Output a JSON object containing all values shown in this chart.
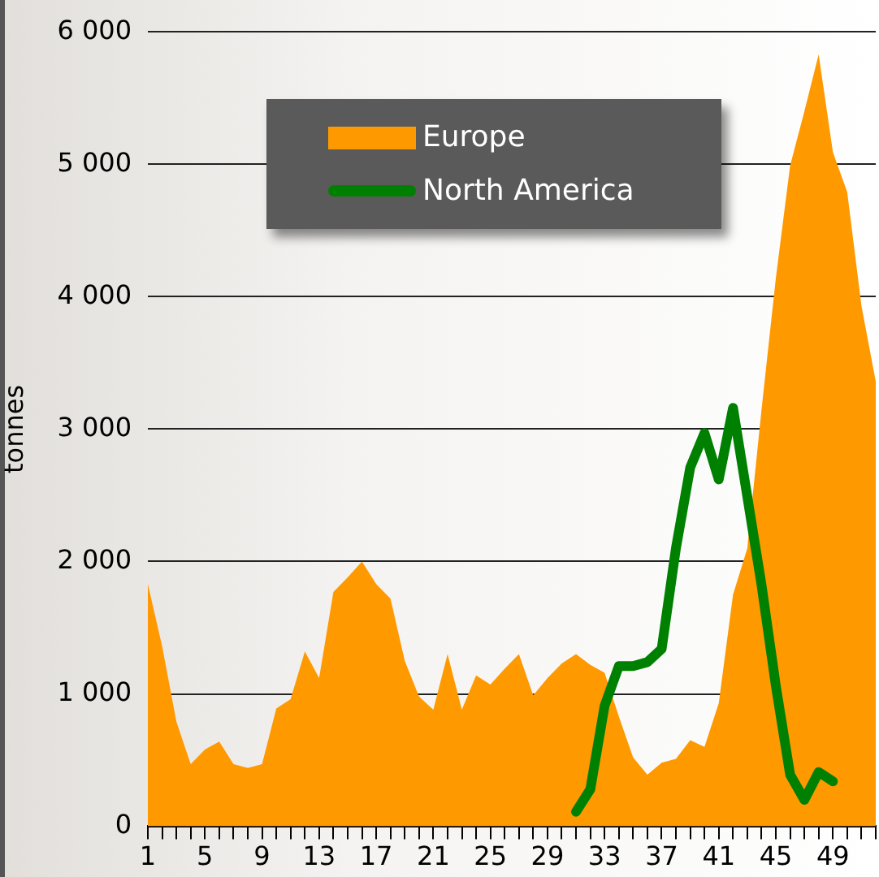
{
  "chart_data": {
    "type": "area",
    "ylabel": "tonnes",
    "categories": [
      "1",
      null,
      null,
      null,
      "5",
      null,
      null,
      null,
      "9",
      null,
      null,
      null,
      "13",
      null,
      null,
      null,
      "17",
      null,
      null,
      null,
      "21",
      null,
      null,
      null,
      "25",
      null,
      null,
      null,
      "29",
      null,
      null,
      null,
      "33",
      null,
      null,
      null,
      "37",
      null,
      null,
      null,
      "41",
      null,
      null,
      null,
      "45",
      null,
      null,
      null,
      "49",
      null,
      null,
      null
    ],
    "series": [
      {
        "name": "Europe",
        "type": "area",
        "color": "#ff9900",
        "values": [
          1830,
          1360,
          790,
          470,
          580,
          640,
          470,
          440,
          470,
          890,
          960,
          1320,
          1120,
          1770,
          1880,
          2000,
          1830,
          1720,
          1250,
          980,
          880,
          1300,
          880,
          1140,
          1070,
          1190,
          1300,
          990,
          1120,
          1230,
          1300,
          1220,
          1160,
          830,
          520,
          390,
          480,
          510,
          650,
          600,
          930,
          1750,
          2100,
          3150,
          4140,
          4990,
          5400,
          5830,
          5090,
          4790,
          3930,
          3360
        ]
      },
      {
        "name": "North America",
        "type": "line",
        "color": "#008000",
        "values": [
          null,
          null,
          null,
          null,
          null,
          null,
          null,
          null,
          null,
          null,
          null,
          null,
          null,
          null,
          null,
          null,
          null,
          null,
          null,
          null,
          null,
          null,
          null,
          null,
          null,
          null,
          null,
          null,
          null,
          null,
          110,
          280,
          910,
          1210,
          1210,
          1240,
          1340,
          2100,
          2710,
          2970,
          2620,
          3160,
          2490,
          1820,
          1060,
          390,
          200,
          410,
          340,
          null,
          null,
          null
        ]
      }
    ],
    "ylim": [
      0,
      6000
    ],
    "yticks": [
      0,
      {
        "value": 1000,
        "label": "1 000"
      },
      {
        "value": 2000,
        "label": "2 000"
      },
      {
        "value": 3000,
        "label": "3 000"
      },
      {
        "value": 4000,
        "label": "4 000"
      },
      {
        "value": 5000,
        "label": "5 000"
      },
      {
        "value": 6000,
        "label": "6 000"
      }
    ],
    "grid": "y",
    "legend": "top left"
  }
}
